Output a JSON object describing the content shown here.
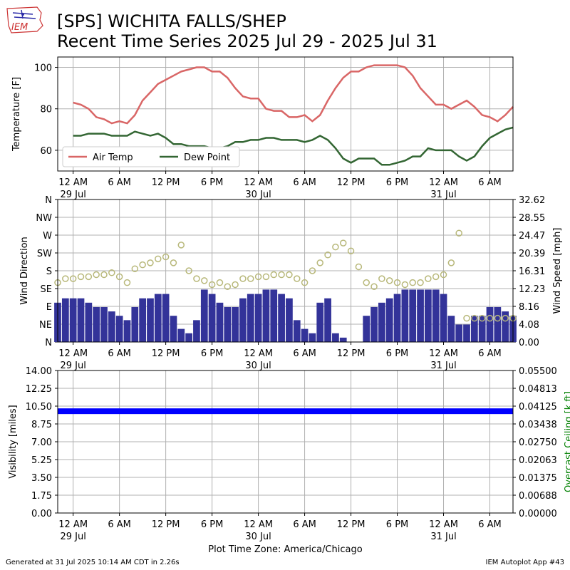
{
  "header": {
    "title_line1": "[SPS] WICHITA FALLS/SHEP",
    "title_line2": "Recent Time Series 2025 Jul 29 - 2025 Jul 31",
    "logo_text": "IEM"
  },
  "footer": {
    "generated": "Generated at 31 Jul 2025 10:14 AM CDT in 2.26s",
    "app": "IEM Autoplot App #43"
  },
  "time_axis": {
    "start_hour": -2,
    "end_hour": 57,
    "tick_labels": [
      "12 AM",
      "6 AM",
      "12 PM",
      "6 PM",
      "12 AM",
      "6 AM",
      "12 PM",
      "6 PM",
      "12 AM",
      "6 AM"
    ],
    "date_labels": [
      {
        "hour": 0,
        "label": "29 Jul"
      },
      {
        "hour": 24,
        "label": "30 Jul"
      },
      {
        "hour": 48,
        "label": "31 Jul"
      }
    ],
    "timezone_label": "Plot Time Zone: America/Chicago"
  },
  "chart_data": [
    {
      "type": "line",
      "ylabel": "Temperature [F]",
      "ylim": [
        50,
        105
      ],
      "yticks": [
        60,
        80,
        100
      ],
      "grid": true,
      "legend_placement": "lower-left",
      "x_hours": [
        0,
        1,
        2,
        3,
        4,
        5,
        6,
        7,
        8,
        9,
        10,
        11,
        12,
        13,
        14,
        15,
        16,
        17,
        18,
        19,
        20,
        21,
        22,
        23,
        24,
        25,
        26,
        27,
        28,
        29,
        30,
        31,
        32,
        33,
        34,
        35,
        36,
        37,
        38,
        39,
        40,
        41,
        42,
        43,
        44,
        45,
        46,
        47,
        48,
        49,
        50,
        51,
        52,
        53,
        54,
        55,
        56,
        57
      ],
      "series": [
        {
          "name": "Air Temp",
          "color": "#d96666",
          "values": [
            83,
            82,
            80,
            76,
            75,
            73,
            74,
            73,
            77,
            84,
            88,
            92,
            94,
            96,
            98,
            99,
            100,
            100,
            98,
            98,
            95,
            90,
            86,
            85,
            85,
            80,
            79,
            79,
            76,
            76,
            77,
            74,
            77,
            84,
            90,
            95,
            98,
            98,
            100,
            101,
            101,
            101,
            101,
            100,
            96,
            90,
            86,
            82,
            82,
            80,
            82,
            84,
            81,
            77,
            76,
            74,
            77,
            81
          ]
        },
        {
          "name": "Dew Point",
          "color": "#336633",
          "values": [
            67,
            67,
            68,
            68,
            68,
            67,
            67,
            67,
            69,
            68,
            67,
            68,
            66,
            63,
            63,
            62,
            62,
            62,
            61,
            61,
            62,
            64,
            64,
            65,
            65,
            66,
            66,
            65,
            65,
            65,
            64,
            65,
            67,
            65,
            61,
            56,
            54,
            56,
            56,
            56,
            53,
            53,
            54,
            55,
            57,
            57,
            61,
            60,
            60,
            60,
            57,
            55,
            57,
            62,
            66,
            68,
            70,
            71
          ]
        }
      ]
    },
    {
      "type": "bar",
      "ylabel": "Wind Direction",
      "y2label": "Wind Speed [mph]",
      "dir_ticks": [
        "N",
        "NE",
        "E",
        "SE",
        "S",
        "SW",
        "W",
        "NW",
        "N"
      ],
      "speed_ylim": [
        0,
        32.62
      ],
      "speed_ticks": [
        "0.00",
        "4.08",
        "8.16",
        "12.23",
        "16.31",
        "20.39",
        "24.47",
        "28.55",
        "32.62"
      ],
      "bar_color": "#333399",
      "point_color": "#b8b87a",
      "grid": true,
      "series": [
        {
          "name": "Wind Speed",
          "x_hours": [
            -2,
            -1,
            0,
            1,
            2,
            3,
            4,
            5,
            6,
            7,
            8,
            9,
            10,
            11,
            12,
            13,
            14,
            15,
            16,
            17,
            18,
            19,
            20,
            21,
            22,
            23,
            24,
            25,
            26,
            27,
            28,
            29,
            30,
            31,
            32,
            33,
            34,
            35,
            36,
            37,
            38,
            39,
            40,
            41,
            42,
            43,
            44,
            45,
            46,
            47,
            48,
            49,
            50,
            51,
            52,
            53,
            54,
            55,
            56,
            57
          ],
          "values": [
            9,
            10,
            10,
            10,
            9,
            8,
            8,
            7,
            6,
            5,
            8,
            10,
            10,
            11,
            11,
            6,
            3,
            2,
            5,
            12,
            11,
            9,
            8,
            8,
            10,
            11,
            11,
            12,
            12,
            11,
            10,
            5,
            3,
            2,
            9,
            10,
            2,
            1,
            0,
            0,
            6,
            8,
            9,
            10,
            11,
            12,
            12,
            12,
            12,
            12,
            11,
            6,
            4,
            4,
            6,
            6,
            8,
            8,
            7,
            6
          ]
        },
        {
          "name": "Wind Direction",
          "x_hours": [
            -2,
            -1,
            0,
            1,
            2,
            3,
            4,
            5,
            6,
            7,
            8,
            9,
            10,
            11,
            12,
            13,
            14,
            15,
            16,
            17,
            18,
            19,
            20,
            21,
            22,
            23,
            24,
            25,
            26,
            27,
            28,
            29,
            30,
            31,
            32,
            33,
            34,
            35,
            36,
            37,
            38,
            39,
            40,
            41,
            42,
            43,
            44,
            45,
            46,
            47,
            48,
            49,
            50,
            51,
            52,
            53,
            54,
            55,
            56,
            57
          ],
          "values": [
            150,
            160,
            160,
            165,
            165,
            170,
            170,
            175,
            165,
            150,
            185,
            195,
            200,
            210,
            215,
            200,
            245,
            180,
            160,
            155,
            145,
            150,
            140,
            145,
            160,
            160,
            165,
            165,
            170,
            170,
            170,
            160,
            150,
            180,
            200,
            220,
            240,
            250,
            230,
            190,
            150,
            140,
            160,
            155,
            150,
            145,
            150,
            150,
            160,
            165,
            170,
            200,
            275,
            60,
            60,
            60,
            60,
            60,
            60,
            60
          ]
        }
      ]
    },
    {
      "type": "area",
      "ylabel": "Visibility [miles]",
      "y2label": "Overcast Ceiling [k ft]",
      "vis_ylim": [
        0,
        14
      ],
      "vis_ticks": [
        "0.00",
        "1.75",
        "3.50",
        "5.25",
        "7.00",
        "8.75",
        "10.50",
        "12.25",
        "14.00"
      ],
      "ceiling_ylim": [
        0,
        0.055
      ],
      "ceiling_ticks": [
        "0.00000",
        "0.00688",
        "0.01375",
        "0.02063",
        "0.02750",
        "0.03438",
        "0.04125",
        "0.04813",
        "0.05500"
      ],
      "visibility_value": 10,
      "fill_color": "#0000ff",
      "ceiling_label_color": "#008000",
      "grid": true
    }
  ]
}
